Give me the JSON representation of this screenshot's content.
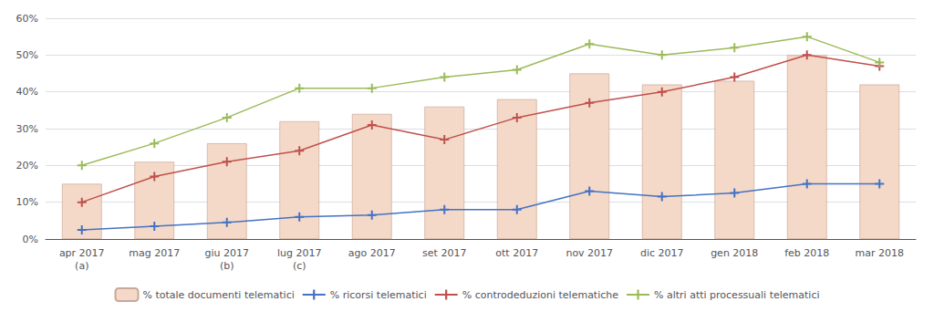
{
  "chart_data": {
    "type": "bar",
    "categories": [
      "apr 2017\n(a)",
      "mag 2017",
      "giu 2017\n(b)",
      "lug 2017\n(c)",
      "ago 2017",
      "set 2017",
      "ott 2017",
      "nov 2017",
      "dic 2017",
      "gen 2018",
      "feb 2018",
      "mar 2018"
    ],
    "series": [
      {
        "name": "% totale documenti telematici",
        "type": "bar",
        "color": "#f5d9c8",
        "values": [
          15,
          21,
          26,
          32,
          34,
          36,
          38,
          45,
          42,
          43,
          50,
          42
        ]
      },
      {
        "name": "% ricorsi telematici",
        "type": "line",
        "marker": "plus",
        "color": "#4472c4",
        "values": [
          2.5,
          3.5,
          4.5,
          6.0,
          6.5,
          8.0,
          8.0,
          13.0,
          11.5,
          12.5,
          15.0,
          15.0
        ]
      },
      {
        "name": "% controdeduzioni telematiche",
        "type": "line",
        "marker": "plus",
        "color": "#c0504d",
        "values": [
          10,
          17,
          21,
          24,
          31,
          27,
          33,
          37,
          40,
          44,
          50,
          47
        ]
      },
      {
        "name": "% altri atti processuali telematici",
        "type": "line",
        "marker": "plus",
        "color": "#9bbb59",
        "values": [
          20,
          26,
          33,
          41,
          41,
          44,
          46,
          53,
          50,
          52,
          55,
          48
        ]
      }
    ],
    "ylim": [
      0,
      60
    ],
    "yticks": [
      {
        "value": 0,
        "label": "0%"
      },
      {
        "value": 10,
        "label": "10%"
      },
      {
        "value": 20,
        "label": "20%"
      },
      {
        "value": 30,
        "label": "30%"
      },
      {
        "value": 40,
        "label": "40%"
      },
      {
        "value": 50,
        "label": "50%"
      },
      {
        "value": 60,
        "label": "60%"
      }
    ],
    "grid": true,
    "legend": "bottom"
  }
}
